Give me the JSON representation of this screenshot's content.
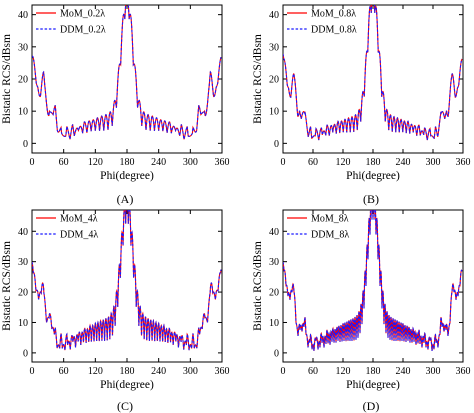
{
  "colors": {
    "mom": "#ff0000",
    "ddm": "#1a1aff",
    "axis": "#000000"
  },
  "chart_data": [
    {
      "type": "line",
      "panel_label": "(A)",
      "xlabel": "Phi(degree)",
      "ylabel": "Bistatic RCS/dBsm",
      "xlim": [
        0,
        360
      ],
      "ylim": [
        -3,
        43
      ],
      "xticks": [
        0,
        60,
        120,
        180,
        240,
        300,
        360
      ],
      "yticks": [
        0,
        10,
        20,
        30,
        40
      ],
      "legend_position": "top-left",
      "series": [
        {
          "name": "MoM_0.2λ",
          "style": "solid",
          "color": "#ff0000"
        },
        {
          "name": "DDM_0.2λ",
          "style": "dashed",
          "color": "#1a1aff"
        }
      ],
      "shape": {
        "peak": 41,
        "side_level": 27,
        "near_lobe": 20,
        "near_lobe_deg": 22,
        "shoulder": 12,
        "shoulder_deg": 40,
        "floor": 4,
        "ripple": 2,
        "ripple_period": 8,
        "dip_scale": 0.9,
        "x_max": 358
      }
    },
    {
      "type": "line",
      "panel_label": "(B)",
      "xlabel": "Phi(degree)",
      "ylabel": "Bistatic RCS/dBsm",
      "xlim": [
        0,
        360
      ],
      "ylim": [
        -3,
        43
      ],
      "xticks": [
        0,
        60,
        120,
        180,
        240,
        300,
        360
      ],
      "yticks": [
        0,
        10,
        20,
        30,
        40
      ],
      "legend_position": "top-left",
      "series": [
        {
          "name": "MoM_0.8λ",
          "style": "solid",
          "color": "#ff0000"
        },
        {
          "name": "DDM_0.8λ",
          "style": "dashed",
          "color": "#1a1aff"
        }
      ],
      "shape": {
        "peak": 42.5,
        "side_level": 27,
        "near_lobe": 20,
        "near_lobe_deg": 22,
        "shoulder": 11,
        "shoulder_deg": 40,
        "floor": 3.5,
        "ripple": 2,
        "ripple_period": 7,
        "dip_scale": 0.8,
        "x_max": 358
      }
    },
    {
      "type": "line",
      "panel_label": "(C)",
      "xlabel": "Phi(degree)",
      "ylabel": "Bistatic RCS/dBsm",
      "xlim": [
        0,
        360
      ],
      "ylim": [
        -3,
        47
      ],
      "xticks": [
        0,
        60,
        120,
        180,
        240,
        300,
        360
      ],
      "yticks": [
        0,
        10,
        20,
        30,
        40
      ],
      "legend_position": "top-left",
      "series": [
        {
          "name": "MoM_4λ",
          "style": "solid",
          "color": "#ff0000"
        },
        {
          "name": "DDM_4λ",
          "style": "dashed",
          "color": "#1a1aff"
        }
      ],
      "shape": {
        "peak": 43.5,
        "side_level": 28,
        "near_lobe": 20,
        "near_lobe_deg": 20,
        "shoulder": 12,
        "shoulder_deg": 35,
        "floor": 4,
        "ripple": 3,
        "ripple_period": 5,
        "dip_scale": 1.0,
        "x_max": 358
      }
    },
    {
      "type": "line",
      "panel_label": "(D)",
      "xlabel": "Phi(degree)",
      "ylabel": "Bistatic RCS/dBsm",
      "xlim": [
        0,
        360
      ],
      "ylim": [
        -3,
        47
      ],
      "xticks": [
        0,
        60,
        120,
        180,
        240,
        300,
        360
      ],
      "yticks": [
        0,
        10,
        20,
        30,
        40
      ],
      "legend_position": "top-left",
      "series": [
        {
          "name": "MoM_8λ",
          "style": "solid",
          "color": "#ff0000"
        },
        {
          "name": "DDM_8λ",
          "style": "dashed",
          "color": "#1a1aff"
        }
      ],
      "shape": {
        "peak": 44.5,
        "side_level": 28,
        "near_lobe": 20,
        "near_lobe_deg": 20,
        "shoulder": 11,
        "shoulder_deg": 40,
        "floor": 4,
        "ripple": 3,
        "ripple_period": 4,
        "dip_scale": 1.0,
        "x_max": 358
      }
    }
  ]
}
